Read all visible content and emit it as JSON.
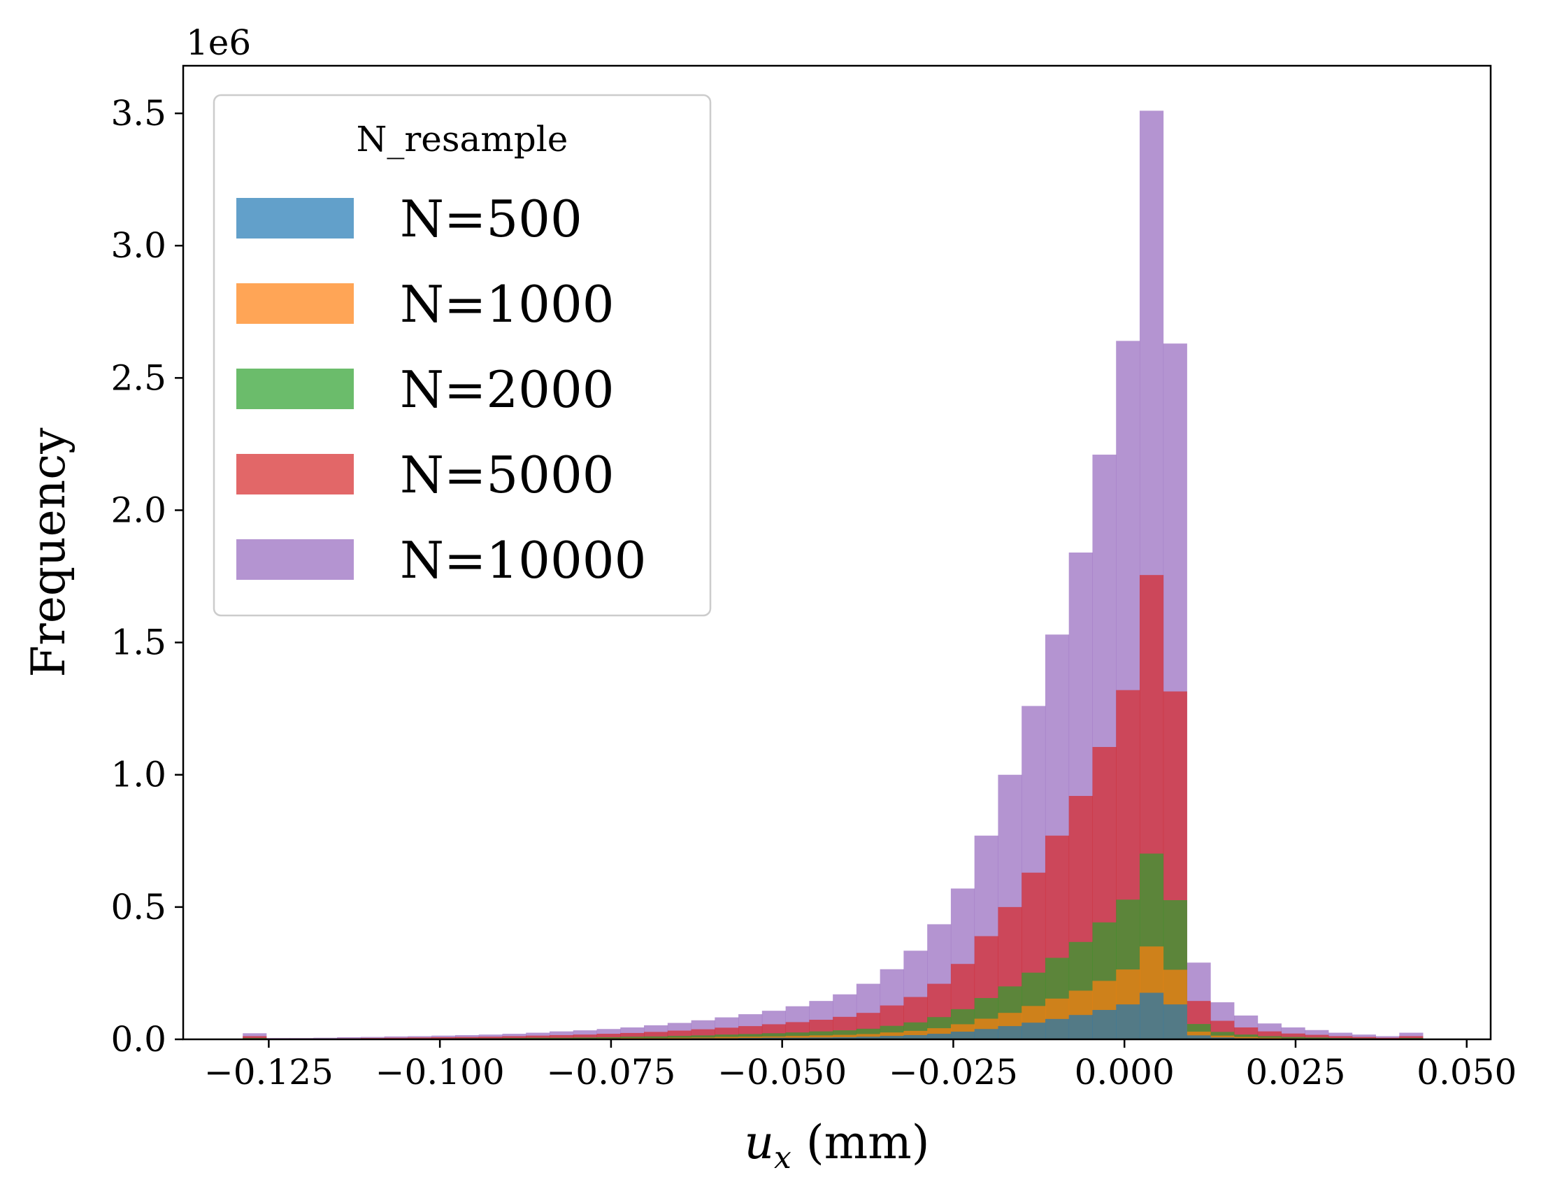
{
  "chart_data": {
    "type": "bar",
    "subtype": "overlaid-histogram",
    "title": "",
    "xlabel": "u_x (mm)",
    "xlabel_var": "u",
    "xlabel_sub": "x",
    "xlabel_unit": " (mm)",
    "ylabel": "Frequency",
    "y_offset_label": "1e6",
    "y_scale": 1000000,
    "xlim": [
      -0.1375,
      0.0535
    ],
    "ylim": [
      0,
      3.68
    ],
    "xticks": [
      -0.125,
      -0.1,
      -0.075,
      -0.05,
      -0.025,
      0.0,
      0.025,
      0.05
    ],
    "xtick_labels": [
      "−0.125",
      "−0.100",
      "−0.075",
      "−0.050",
      "−0.025",
      "0.000",
      "0.025",
      "0.050"
    ],
    "yticks": [
      0.0,
      0.5,
      1.0,
      1.5,
      2.0,
      2.5,
      3.0,
      3.5
    ],
    "ytick_labels": [
      "0.0",
      "0.5",
      "1.0",
      "1.5",
      "2.0",
      "2.5",
      "3.0",
      "3.5"
    ],
    "grid": false,
    "alpha": 0.7,
    "legend": {
      "title": "N_resample",
      "placement": "upper-left"
    },
    "bins": {
      "start": -0.1288,
      "width": 0.003448,
      "count": 50
    },
    "series": [
      {
        "name": "N=10000",
        "color": "#9467bd",
        "values": [
          0.023,
          0.005,
          0.005,
          0.006,
          0.008,
          0.009,
          0.011,
          0.012,
          0.014,
          0.016,
          0.018,
          0.021,
          0.025,
          0.03,
          0.034,
          0.039,
          0.045,
          0.053,
          0.062,
          0.072,
          0.083,
          0.095,
          0.108,
          0.125,
          0.145,
          0.17,
          0.21,
          0.265,
          0.335,
          0.435,
          0.57,
          0.77,
          1.0,
          1.26,
          1.53,
          1.84,
          2.21,
          2.64,
          3.51,
          2.63,
          0.29,
          0.14,
          0.09,
          0.06,
          0.045,
          0.035,
          0.025,
          0.018,
          0.012,
          0.025
        ]
      },
      {
        "name": "N=5000",
        "color": "#d62728",
        "values": [
          0.012,
          0.003,
          0.003,
          0.003,
          0.004,
          0.005,
          0.006,
          0.007,
          0.008,
          0.009,
          0.01,
          0.012,
          0.014,
          0.016,
          0.018,
          0.021,
          0.024,
          0.028,
          0.033,
          0.038,
          0.044,
          0.05,
          0.057,
          0.065,
          0.074,
          0.085,
          0.1,
          0.128,
          0.16,
          0.21,
          0.285,
          0.39,
          0.5,
          0.63,
          0.77,
          0.92,
          1.105,
          1.32,
          1.755,
          1.315,
          0.145,
          0.07,
          0.045,
          0.03,
          0.022,
          0.017,
          0.012,
          0.009,
          0.006,
          0.012
        ]
      },
      {
        "name": "N=2000",
        "color": "#2ca02c",
        "values": [
          0.005,
          0.001,
          0.001,
          0.001,
          0.002,
          0.002,
          0.002,
          0.003,
          0.003,
          0.004,
          0.004,
          0.005,
          0.006,
          0.006,
          0.007,
          0.008,
          0.01,
          0.011,
          0.013,
          0.015,
          0.018,
          0.02,
          0.023,
          0.026,
          0.03,
          0.034,
          0.04,
          0.051,
          0.064,
          0.084,
          0.114,
          0.156,
          0.2,
          0.252,
          0.308,
          0.368,
          0.442,
          0.528,
          0.702,
          0.526,
          0.058,
          0.028,
          0.018,
          0.012,
          0.009,
          0.007,
          0.005,
          0.004,
          0.002,
          0.005
        ]
      },
      {
        "name": "N=1000",
        "color": "#ff7f0e",
        "values": [
          0.002,
          0.001,
          0.001,
          0.001,
          0.001,
          0.001,
          0.001,
          0.001,
          0.001,
          0.002,
          0.002,
          0.002,
          0.003,
          0.003,
          0.003,
          0.004,
          0.005,
          0.005,
          0.006,
          0.007,
          0.009,
          0.01,
          0.011,
          0.013,
          0.015,
          0.017,
          0.02,
          0.026,
          0.032,
          0.042,
          0.057,
          0.078,
          0.1,
          0.126,
          0.154,
          0.184,
          0.221,
          0.264,
          0.351,
          0.263,
          0.029,
          0.014,
          0.009,
          0.006,
          0.004,
          0.003,
          0.002,
          0.002,
          0.001,
          0.002
        ]
      },
      {
        "name": "N=500",
        "color": "#1f77b4",
        "values": [
          0.001,
          0.0,
          0.0,
          0.0,
          0.0,
          0.0,
          0.001,
          0.001,
          0.001,
          0.001,
          0.001,
          0.001,
          0.001,
          0.002,
          0.002,
          0.002,
          0.002,
          0.003,
          0.003,
          0.004,
          0.004,
          0.005,
          0.006,
          0.006,
          0.007,
          0.008,
          0.01,
          0.013,
          0.016,
          0.021,
          0.029,
          0.039,
          0.05,
          0.063,
          0.077,
          0.092,
          0.111,
          0.132,
          0.176,
          0.132,
          0.015,
          0.007,
          0.004,
          0.003,
          0.002,
          0.002,
          0.001,
          0.001,
          0.001,
          0.001
        ]
      }
    ]
  }
}
